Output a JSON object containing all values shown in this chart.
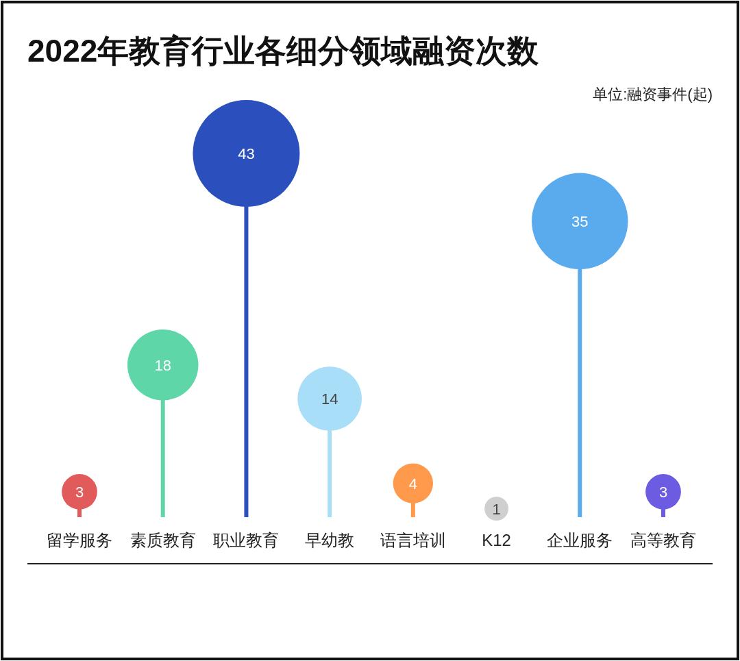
{
  "chart_data": {
    "type": "lollipop",
    "title": "2022年教育行业各细分领域融资次数",
    "annotations": [
      "单位:融资事件(起)"
    ],
    "categories": [
      "留学服务",
      "素质教育",
      "职业教育",
      "早幼教",
      "语言培训",
      "K12",
      "企业服务",
      "高等教育"
    ],
    "values": [
      3,
      18,
      43,
      14,
      4,
      1,
      35,
      3
    ],
    "sizes": [
      0.11,
      0.44,
      1,
      0.36,
      0.14,
      0.05,
      0.81,
      0.11
    ],
    "colors": [
      "#e25b5b",
      "#5fd6a8",
      "#2c4fbe",
      "#a9def8",
      "#ff9a4c",
      "#cfcfcf",
      "#5aaaee",
      "#6b5ce2"
    ],
    "data_labels": true
  }
}
